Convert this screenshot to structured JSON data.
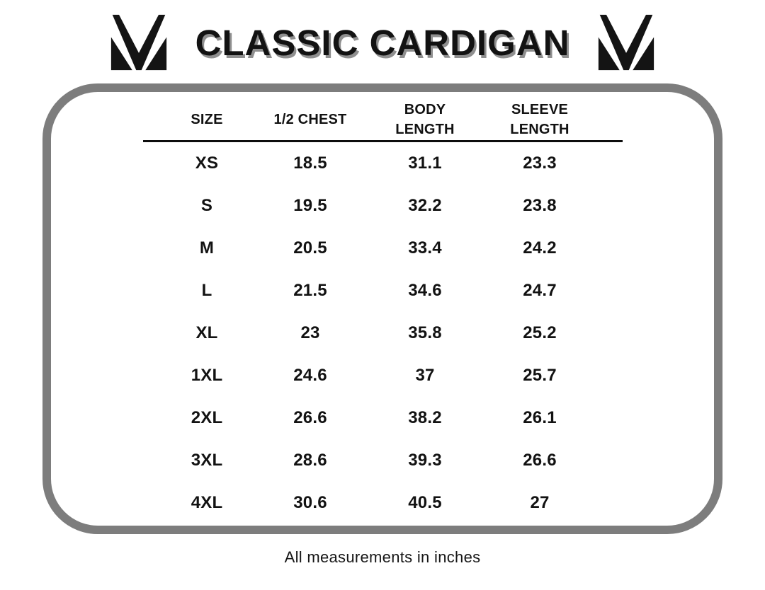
{
  "header": {
    "title": "CLASSIC CARDIGAN"
  },
  "logo": {
    "glyph": "M-monogram",
    "color": "#141414"
  },
  "table": {
    "headers": [
      {
        "line1": "SIZE",
        "line2": ""
      },
      {
        "line1": "1/2 CHEST",
        "line2": ""
      },
      {
        "line1": "BODY",
        "line2": "LENGTH"
      },
      {
        "line1": "SLEEVE",
        "line2": "LENGTH"
      }
    ]
  },
  "footer": {
    "note": "All measurements in inches"
  },
  "colors": {
    "panel_border": "#7d7d7d",
    "text": "#121212",
    "title_shadow": "#8f8f8f",
    "header_rule": "#0d0d0d"
  },
  "chart_data": {
    "type": "table",
    "title": "CLASSIC CARDIGAN",
    "columns": [
      "SIZE",
      "1/2 CHEST",
      "BODY LENGTH",
      "SLEEVE LENGTH"
    ],
    "rows": [
      [
        "XS",
        18.5,
        31.1,
        23.3
      ],
      [
        "S",
        19.5,
        32.2,
        23.8
      ],
      [
        "M",
        20.5,
        33.4,
        24.2
      ],
      [
        "L",
        21.5,
        34.6,
        24.7
      ],
      [
        "XL",
        23,
        35.8,
        25.2
      ],
      [
        "1XL",
        24.6,
        37,
        25.7
      ],
      [
        "2XL",
        26.6,
        38.2,
        26.1
      ],
      [
        "3XL",
        28.6,
        39.3,
        26.6
      ],
      [
        "4XL",
        30.6,
        40.5,
        27
      ]
    ],
    "note": "All measurements in inches",
    "units": "inches",
    "layout": {
      "header_rule": true,
      "rounded_gray_frame": true,
      "grid": false
    }
  }
}
